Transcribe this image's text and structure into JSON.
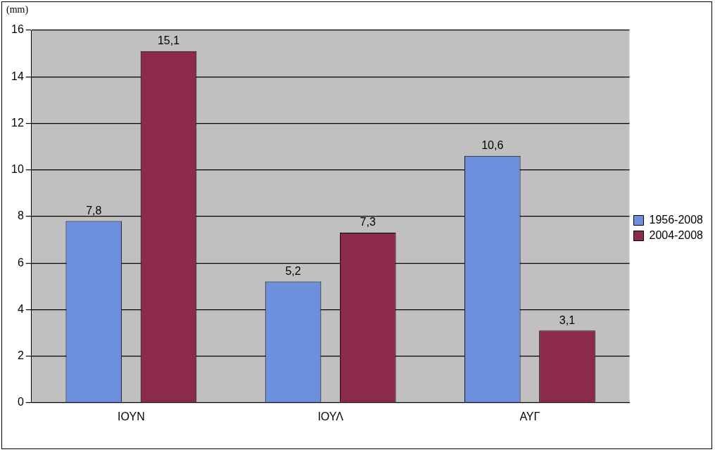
{
  "chart_data": {
    "type": "bar",
    "ylabel": "(mm)",
    "categories": [
      "ΙΟΥΝ",
      "ΙΟΥΛ",
      "ΑΥΓ"
    ],
    "series": [
      {
        "name": "1956-2008",
        "color": "#6e8fdc",
        "values": [
          7.8,
          5.2,
          10.6
        ],
        "value_labels": [
          "7,8",
          "5,2",
          "10,6"
        ]
      },
      {
        "name": "2004-2008",
        "color": "#8b2a4c",
        "values": [
          15.1,
          7.3,
          3.1
        ],
        "value_labels": [
          "15,1",
          "7,3",
          "3,1"
        ]
      }
    ],
    "ylim": [
      0,
      16
    ],
    "yticks": [
      0,
      2,
      4,
      6,
      8,
      10,
      12,
      14,
      16
    ],
    "grid": "y",
    "legend": "right"
  }
}
